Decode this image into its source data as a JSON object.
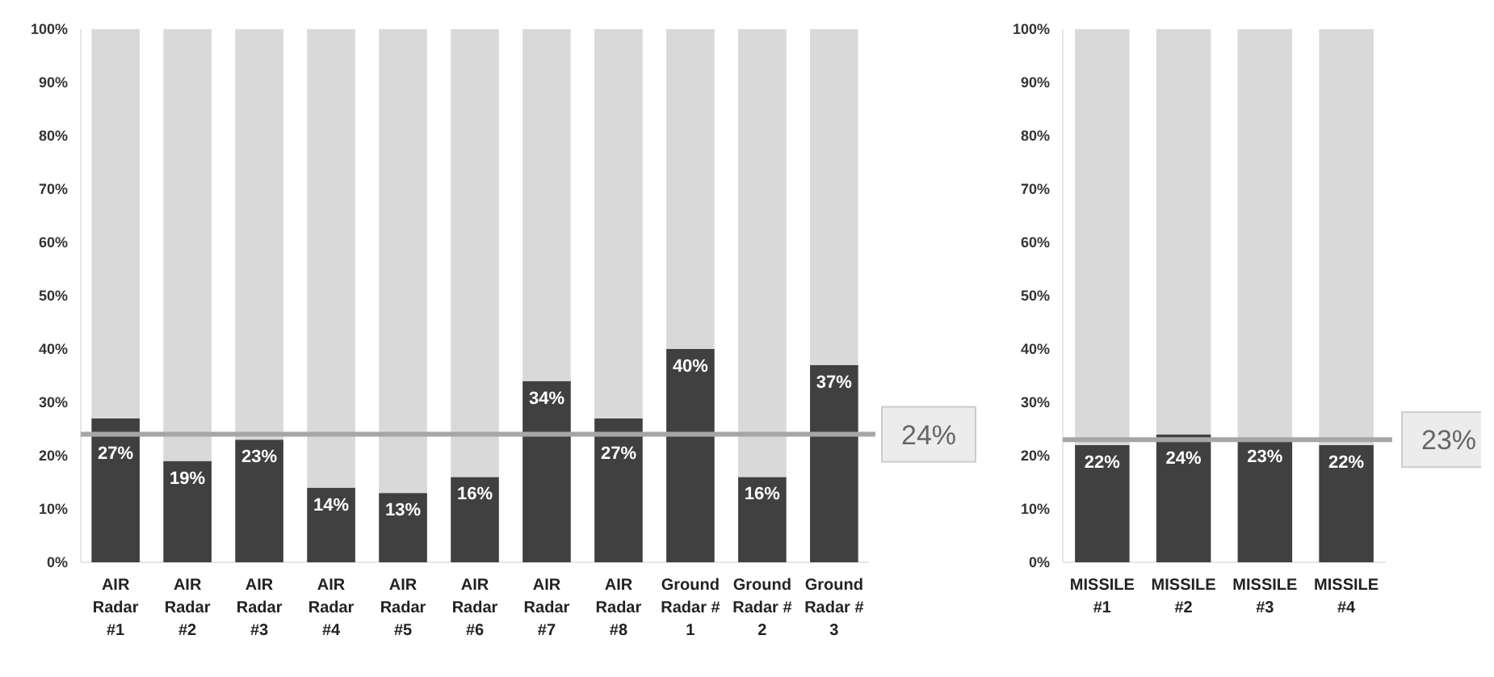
{
  "chart_data": [
    {
      "type": "bar",
      "stacked": true,
      "categories": [
        "AIR Radar #1",
        "AIR Radar #2",
        "AIR Radar #3",
        "AIR Radar #4",
        "AIR Radar #5",
        "AIR Radar #6",
        "AIR Radar #7",
        "AIR Radar #8",
        "Ground Radar # 1",
        "Ground Radar # 2",
        "Ground Radar # 3"
      ],
      "series": [
        {
          "color": "#404040",
          "values": [
            27,
            19,
            23,
            14,
            13,
            16,
            34,
            27,
            40,
            16,
            37
          ],
          "value_labels": [
            "27%",
            "19%",
            "23%",
            "14%",
            "13%",
            "16%",
            "34%",
            "27%",
            "40%",
            "16%",
            "37%"
          ]
        },
        {
          "color": "#d9d9d9",
          "values": [
            73,
            81,
            77,
            86,
            87,
            84,
            66,
            73,
            60,
            84,
            63
          ]
        }
      ],
      "ylim": [
        0,
        100
      ],
      "yticks": [
        {
          "value": 0,
          "label": "0%"
        },
        {
          "value": 10,
          "label": "10%"
        },
        {
          "value": 20,
          "label": "20%"
        },
        {
          "value": 30,
          "label": "30%"
        },
        {
          "value": 40,
          "label": "40%"
        },
        {
          "value": 50,
          "label": "50%"
        },
        {
          "value": 60,
          "label": "60%"
        },
        {
          "value": 70,
          "label": "70%"
        },
        {
          "value": 80,
          "label": "80%"
        },
        {
          "value": 90,
          "label": "90%"
        },
        {
          "value": 100,
          "label": "100%"
        }
      ],
      "ref_lines": [
        {
          "axis": "y",
          "value": 24,
          "label": "24%",
          "color": "#a6a6a6"
        }
      ],
      "grid": false
    },
    {
      "type": "bar",
      "stacked": true,
      "categories": [
        "MISSILE #1",
        "MISSILE #2",
        "MISSILE #3",
        "MISSILE #4"
      ],
      "series": [
        {
          "color": "#404040",
          "values": [
            22,
            24,
            23,
            22
          ],
          "value_labels": [
            "22%",
            "24%",
            "23%",
            "22%"
          ]
        },
        {
          "color": "#d9d9d9",
          "values": [
            78,
            76,
            77,
            78
          ]
        }
      ],
      "ylim": [
        0,
        100
      ],
      "yticks": [
        {
          "value": 0,
          "label": "0%"
        },
        {
          "value": 10,
          "label": "10%"
        },
        {
          "value": 20,
          "label": "20%"
        },
        {
          "value": 30,
          "label": "30%"
        },
        {
          "value": 40,
          "label": "40%"
        },
        {
          "value": 50,
          "label": "50%"
        },
        {
          "value": 60,
          "label": "60%"
        },
        {
          "value": 70,
          "label": "70%"
        },
        {
          "value": 80,
          "label": "80%"
        },
        {
          "value": 90,
          "label": "90%"
        },
        {
          "value": 100,
          "label": "100%"
        }
      ],
      "ref_lines": [
        {
          "axis": "y",
          "value": 23,
          "label": "23%",
          "color": "#a6a6a6"
        }
      ],
      "grid": false
    }
  ]
}
